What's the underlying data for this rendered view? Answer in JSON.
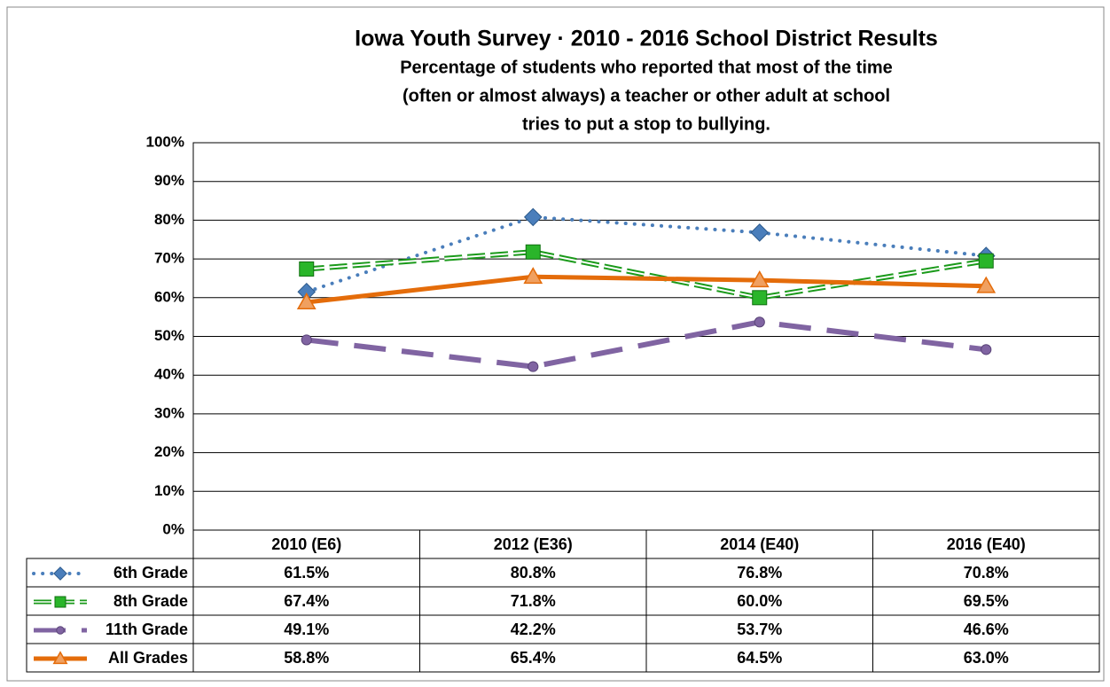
{
  "chart_data": {
    "type": "line",
    "title": "Iowa Youth Survey · 2010 - 2016 School District Results",
    "subtitle": [
      "Percentage of students who reported that most of the time",
      "(often or almost always) a teacher or other adult at school",
      "tries to put a stop to bullying."
    ],
    "categories": [
      "2010 (E6)",
      "2012 (E36)",
      "2014 (E40)",
      "2016 (E40)"
    ],
    "series": [
      {
        "name": "6th Grade",
        "color": "#4a7ebb",
        "marker": "diamond",
        "dash": "dotted",
        "values": [
          61.5,
          80.8,
          76.8,
          70.8
        ],
        "value_labels": [
          "61.5%",
          "80.8%",
          "76.8%",
          "70.8%"
        ]
      },
      {
        "name": "8th Grade",
        "color": "#1a9a1a",
        "marker": "square",
        "dash": "double",
        "values": [
          67.4,
          71.8,
          60.0,
          69.5
        ],
        "value_labels": [
          "67.4%",
          "71.8%",
          "60.0%",
          "69.5%"
        ]
      },
      {
        "name": "11th Grade",
        "color": "#8064a2",
        "marker": "circle",
        "dash": "long",
        "values": [
          49.1,
          42.2,
          53.7,
          46.6
        ],
        "value_labels": [
          "49.1%",
          "42.2%",
          "53.7%",
          "46.6%"
        ]
      },
      {
        "name": "All Grades",
        "color": "#e46c0a",
        "marker": "triangle",
        "dash": "solid",
        "values": [
          58.8,
          65.4,
          64.5,
          63.0
        ],
        "value_labels": [
          "58.8%",
          "65.4%",
          "64.5%",
          "63.0%"
        ]
      }
    ],
    "ylim": [
      0,
      100
    ],
    "yticks": [
      {
        "value": 0,
        "label": "0%"
      },
      {
        "value": 10,
        "label": "10%"
      },
      {
        "value": 20,
        "label": "20%"
      },
      {
        "value": 30,
        "label": "30%"
      },
      {
        "value": 40,
        "label": "40%"
      },
      {
        "value": 50,
        "label": "50%"
      },
      {
        "value": 60,
        "label": "60%"
      },
      {
        "value": 70,
        "label": "70%"
      },
      {
        "value": 80,
        "label": "80%"
      },
      {
        "value": 90,
        "label": "90%"
      },
      {
        "value": 100,
        "label": "100%"
      }
    ],
    "grid": true
  }
}
